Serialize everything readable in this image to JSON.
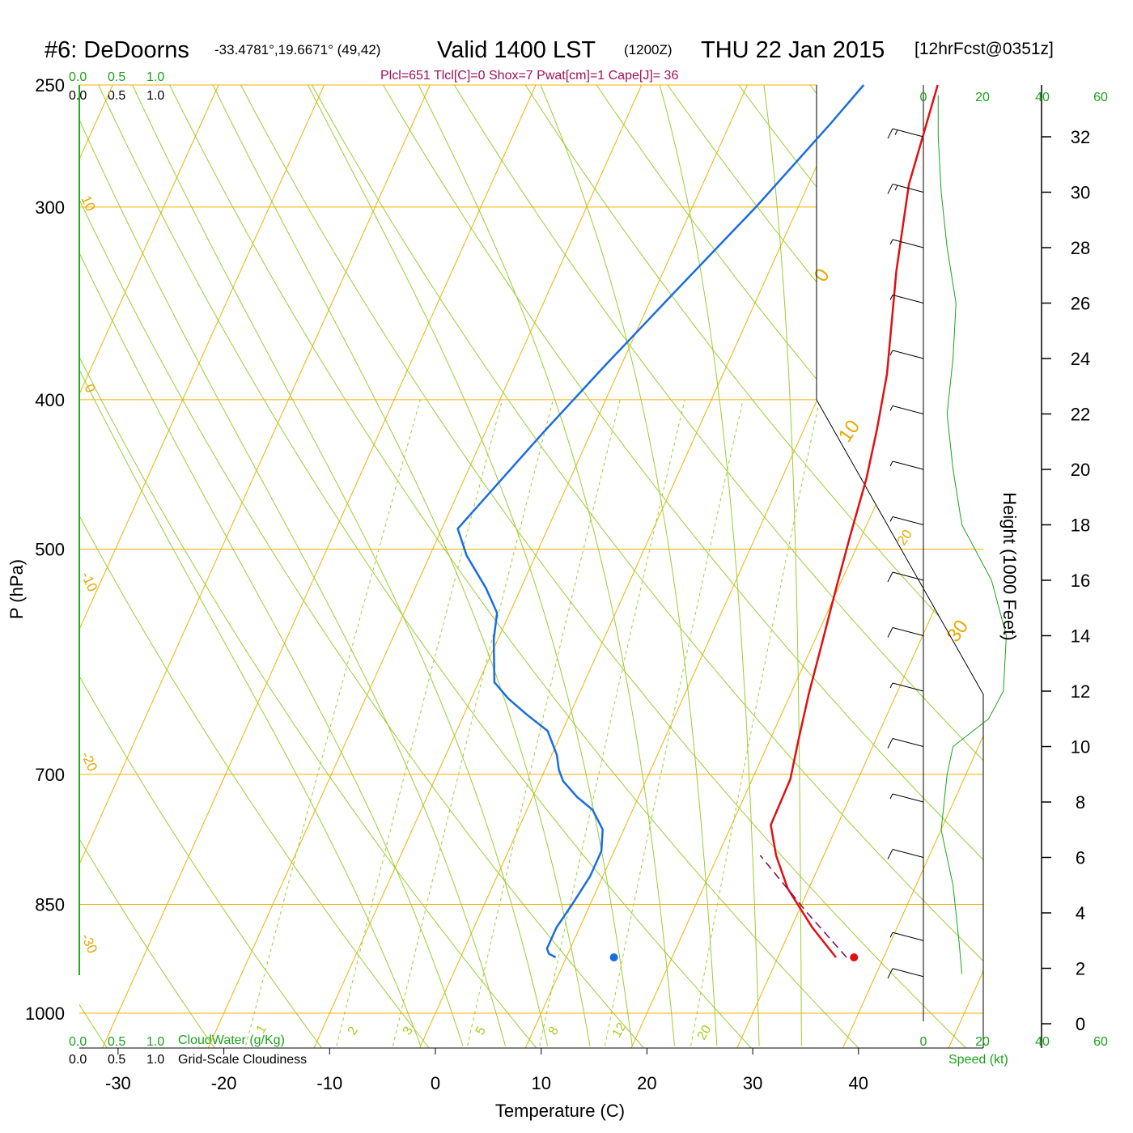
{
  "title": {
    "station": "#6: DeDoorns",
    "coords": "-33.4781°,19.6671° (49,42)",
    "valid": "Valid 1400 LST",
    "utc": "(1200Z)",
    "date": "THU 22 Jan 2015",
    "forecast": "[12hrFcst@0351z]"
  },
  "stats_line": "Plcl=651 Tlcl[C]=0 Shox=7 Pwat[cm]=1 Cape[J]= 36",
  "top_scales": {
    "cloudwater_ticks": [
      "0.0",
      "0.5",
      "1.0"
    ],
    "cloudiness_ticks": [
      "0.0",
      "0.5",
      "1.0"
    ]
  },
  "bottom_scales": {
    "cloudwater_ticks": [
      "0.0",
      "0.5",
      "1.0"
    ],
    "cloudwater_label": "CloudWater (g/Kg)",
    "cloudiness_ticks": [
      "0.0",
      "0.5",
      "1.0"
    ],
    "cloudiness_label": "Grid-Scale Cloudiness"
  },
  "wind_panel": {
    "top_ticks": [
      "0",
      "20",
      "40",
      "60"
    ],
    "bottom_ticks": [
      "0",
      "20",
      "40",
      "60"
    ],
    "speed_label": "Speed (kt)"
  },
  "colors": {
    "isotherm": "#f0b000",
    "dry_adiabat": "#9acd32",
    "mixing_ratio": "#9acd32",
    "temperature": "#e01010",
    "dewpoint": "#1a6de0",
    "parcel": "#7a0a5a",
    "green_text": "#1aa31a",
    "stats_text": "#a0105a"
  },
  "chart_data": {
    "type": "line",
    "diagram": "skew-T log-P",
    "xlabel": "Temperature (C)",
    "ylabel": "P (hPa)",
    "right_axis_label": "Height (1000 Feet)",
    "pressure_ticks": [
      250,
      300,
      400,
      500,
      700,
      850,
      1000
    ],
    "temperature_ticks": [
      -30,
      -20,
      -10,
      0,
      10,
      20,
      30,
      40
    ],
    "height_ticks_kft": [
      0,
      2,
      4,
      6,
      8,
      10,
      12,
      14,
      16,
      18,
      20,
      22,
      24,
      26,
      28,
      30,
      32
    ],
    "isotherm_labels": [
      "10",
      "0",
      "-10",
      "-20",
      "-30",
      "0",
      "10",
      "20",
      "30"
    ],
    "mixing_ratio_labels": [
      "1",
      "2",
      "3",
      "5",
      "8",
      "12",
      "20"
    ],
    "series": [
      {
        "name": "temperature",
        "points": [
          [
            35.5,
            920
          ],
          [
            32,
            880
          ],
          [
            28,
            830
          ],
          [
            25.5,
            790
          ],
          [
            23.7,
            755
          ],
          [
            23.6,
            705
          ],
          [
            22.7,
            665
          ],
          [
            21.7,
            620
          ],
          [
            20.8,
            575
          ],
          [
            19.8,
            530
          ],
          [
            18.9,
            490
          ],
          [
            18,
            450
          ],
          [
            16.9,
            418
          ],
          [
            15.5,
            385
          ],
          [
            12,
            330
          ],
          [
            9.5,
            290
          ],
          [
            8,
            250
          ]
        ]
      },
      {
        "name": "dewpoint",
        "points": [
          [
            9,
            920
          ],
          [
            8.2,
            915
          ],
          [
            7.8,
            908
          ],
          [
            7.8,
            880
          ],
          [
            8.3,
            850
          ],
          [
            8.8,
            815
          ],
          [
            8.8,
            785
          ],
          [
            8,
            760
          ],
          [
            6.2,
            738
          ],
          [
            4.2,
            724
          ],
          [
            2.2,
            707
          ],
          [
            1.3,
            695
          ],
          [
            0.5,
            680
          ],
          [
            -1.4,
            656
          ],
          [
            -4.1,
            640
          ],
          [
            -6.5,
            625
          ],
          [
            -8.5,
            610
          ],
          [
            -10.4,
            572
          ],
          [
            -11.2,
            550
          ],
          [
            -13.3,
            530
          ],
          [
            -16.5,
            505
          ],
          [
            -18.5,
            485
          ],
          [
            -14.5,
            420
          ],
          [
            -11.5,
            380
          ],
          [
            -8,
            340
          ],
          [
            -4,
            300
          ],
          [
            -0.5,
            265
          ],
          [
            1,
            250
          ]
        ]
      },
      {
        "name": "parcel",
        "points": [
          [
            36.5,
            920
          ],
          [
            31,
            862
          ],
          [
            26,
            810
          ],
          [
            24,
            790
          ]
        ]
      }
    ],
    "surface_temperature_c": 37.2,
    "surface_dewpoint_c": 14.5,
    "surface_pressure_hpa": 920,
    "wind_speed_kt": [
      [
        1.7,
        10
      ],
      [
        3,
        9
      ],
      [
        6,
        11
      ],
      [
        8,
        9
      ],
      [
        10,
        10
      ],
      [
        12,
        9
      ],
      [
        14,
        11
      ],
      [
        16,
        14
      ],
      [
        18,
        9
      ],
      [
        20,
        8
      ],
      [
        22,
        7
      ],
      [
        24,
        6
      ],
      [
        26,
        5
      ],
      [
        28,
        5
      ],
      [
        30,
        15
      ],
      [
        32,
        18
      ]
    ],
    "wind_speed_profile_kt": [
      [
        1.8,
        13
      ],
      [
        3,
        12
      ],
      [
        5,
        10
      ],
      [
        7,
        6
      ],
      [
        9,
        8
      ],
      [
        10,
        10
      ],
      [
        11,
        22
      ],
      [
        12,
        27
      ],
      [
        14,
        28
      ],
      [
        16,
        23
      ],
      [
        18,
        13
      ],
      [
        20,
        10
      ],
      [
        22,
        8
      ],
      [
        24,
        10
      ],
      [
        26,
        11
      ],
      [
        28,
        8
      ],
      [
        30,
        6
      ],
      [
        32,
        5
      ],
      [
        33.5,
        5
      ]
    ]
  }
}
